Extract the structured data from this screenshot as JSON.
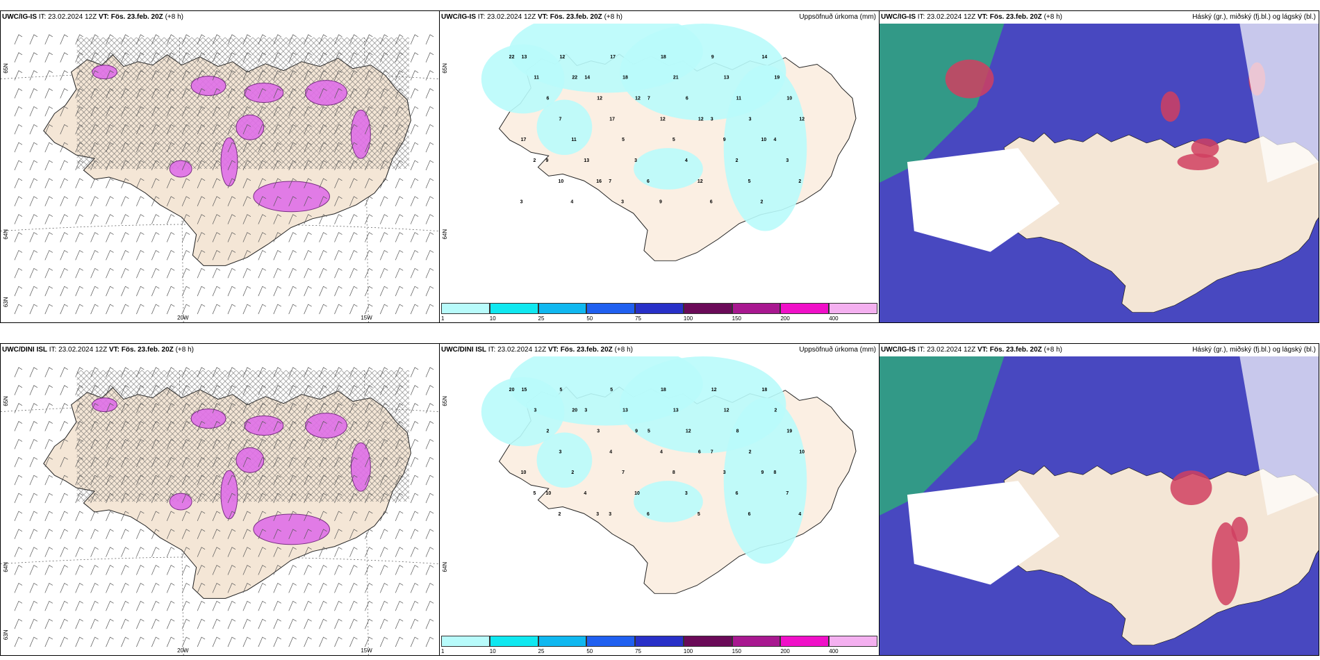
{
  "panels": [
    {
      "id": "tl",
      "model": "UWC/IG-IS",
      "it": "IT: 23.02.2024 12Z",
      "vt_label": "VT:",
      "vt": "Fös. 23.feb. 20Z",
      "lead": "(+8 h)",
      "right_title": "",
      "lat_labels": [
        "65N",
        "64N",
        "63N"
      ],
      "lon_labels": [
        "20W",
        "15W"
      ]
    },
    {
      "id": "tm",
      "model": "UWC/IG-IS",
      "it": "IT: 23.02.2024 12Z",
      "vt_label": "VT:",
      "vt": "Fös. 23.feb. 20Z",
      "lead": "(+8 h)",
      "right_title": "Uppsöfnuð úrkoma (mm)",
      "lat_labels": [
        "65N",
        "64N"
      ],
      "point_values": [
        "22",
        "12",
        "17",
        "18",
        "9",
        "14",
        "13",
        "22",
        "18",
        "21",
        "13",
        "19",
        "11",
        "14",
        "12",
        "6",
        "11",
        "10",
        "6",
        "12",
        "7",
        "12",
        "3",
        "12",
        "7",
        "17",
        "12",
        "3",
        "10",
        "17",
        "11",
        "5",
        "5",
        "9",
        "4",
        "2",
        "13",
        "3",
        "4",
        "2",
        "3",
        "9",
        "16",
        "6",
        "12",
        "5",
        "2",
        "10",
        "7",
        "9",
        "6",
        "2",
        "3",
        "4",
        "3"
      ]
    },
    {
      "id": "tr",
      "model": "UWC/IG-IS",
      "it": "IT: 23.02.2024 12Z",
      "vt_label": "VT:",
      "vt": "Fös. 23.feb. 20Z",
      "lead": "(+8 h)",
      "right_title": "Háský (gr.), miðský (fj.bl.) og lágský (bl.)"
    },
    {
      "id": "bl",
      "model": "UWC/DINI ISL",
      "it": "IT: 23.02.2024 12Z",
      "vt_label": "VT:",
      "vt": "Fös. 23.feb. 20Z",
      "lead": "(+8 h)",
      "right_title": "",
      "lat_labels": [
        "65N",
        "64N",
        "63N"
      ],
      "lon_labels": [
        "20W",
        "15W"
      ]
    },
    {
      "id": "bm",
      "model": "UWC/DINI ISL",
      "it": "IT: 23.02.2024 12Z",
      "vt_label": "VT:",
      "vt": "Fös. 23.feb. 20Z",
      "lead": "(+8 h)",
      "right_title": "Uppsöfnuð úrkoma (mm)",
      "lat_labels": [
        "65N",
        "64N"
      ],
      "point_values": [
        "20",
        "5",
        "5",
        "18",
        "12",
        "18",
        "15",
        "20",
        "13",
        "13",
        "12",
        "2",
        "3",
        "3",
        "9",
        "12",
        "8",
        "19",
        "2",
        "3",
        "5",
        "6",
        "2",
        "10",
        "3",
        "4",
        "4",
        "7",
        "9",
        "10",
        "2",
        "7",
        "8",
        "3",
        "8",
        "5",
        "4",
        "10",
        "3",
        "6",
        "7",
        "10",
        "3",
        "6",
        "5",
        "6",
        "4",
        "2",
        "3"
      ]
    },
    {
      "id": "br",
      "model": "UWC/IG-IS",
      "it": "IT: 23.02.2024 12Z",
      "vt_label": "VT:",
      "vt": "Fös. 23.feb. 20Z",
      "lead": "(+8 h)",
      "right_title": "Háský (gr.), miðský (fj.bl.) og lágský (bl.)"
    }
  ],
  "colorbar": {
    "ticks": [
      "1",
      "10",
      "25",
      "50",
      "75",
      "100",
      "150",
      "200",
      "400"
    ],
    "colors": [
      "#b8fbfb",
      "#10e8f0",
      "#10b8f0",
      "#2060f0",
      "#2830c8",
      "#6a0a58",
      "#a81890",
      "#f010c8",
      "#f4b0f0"
    ]
  },
  "colors": {
    "land": "#f4e6d6",
    "sea_mid": "#b9fbfb",
    "cloud_high": "#2fa87c",
    "cloud_mid": "#d04060",
    "cloud_low": "#4848c0",
    "snow": "#e070e8"
  }
}
